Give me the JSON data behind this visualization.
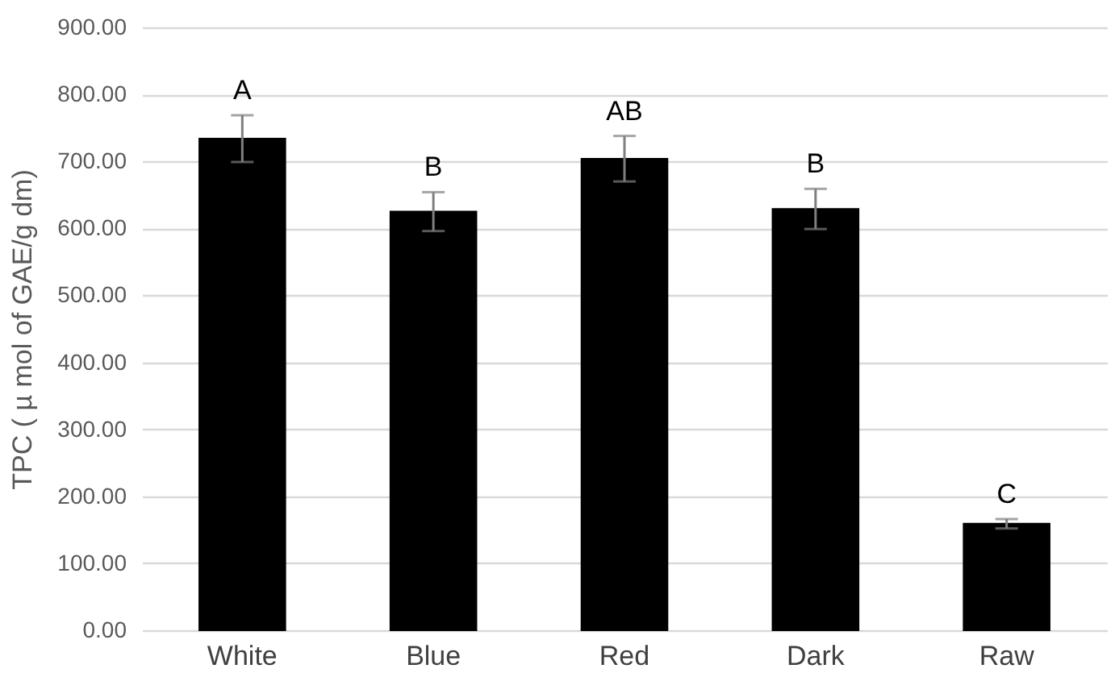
{
  "chart_data": {
    "type": "bar",
    "ylabel": "TPC ( µ mol of GAE/g dm)",
    "categories": [
      "White",
      "Blue",
      "Red",
      "Dark",
      "Raw"
    ],
    "values": [
      734,
      625,
      704,
      629,
      159
    ],
    "errors": [
      35,
      29,
      34,
      30,
      7
    ],
    "color": "#000000",
    "ylim": [
      0,
      900
    ],
    "yticks": [
      {
        "value": 0,
        "label": "0.00"
      },
      {
        "value": 100,
        "label": "100.00"
      },
      {
        "value": 200,
        "label": "200.00"
      },
      {
        "value": 300,
        "label": "300.00"
      },
      {
        "value": 400,
        "label": "400.00"
      },
      {
        "value": 500,
        "label": "500.00"
      },
      {
        "value": 600,
        "label": "600.00"
      },
      {
        "value": 700,
        "label": "700.00"
      },
      {
        "value": 800,
        "label": "800.00"
      },
      {
        "value": 900,
        "label": "900.00"
      }
    ],
    "grid": "y",
    "annotations": [
      {
        "text": "A",
        "x": "White",
        "y": 769
      },
      {
        "text": "B",
        "x": "Blue",
        "y": 654
      },
      {
        "text": "AB",
        "x": "Red",
        "y": 738
      },
      {
        "text": "B",
        "x": "Dark",
        "y": 659
      },
      {
        "text": "C",
        "x": "Raw",
        "y": 166
      }
    ]
  }
}
